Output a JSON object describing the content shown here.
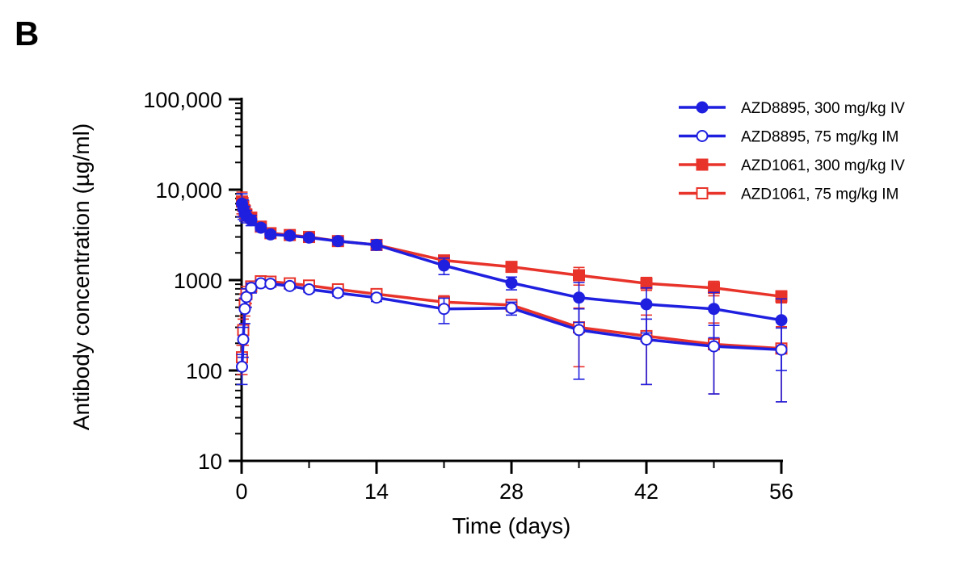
{
  "panel_label": "B",
  "chart_data": {
    "type": "line",
    "title": "",
    "xlabel": "Time (days)",
    "ylabel": "Antibody concentration (µg/ml)",
    "xlim": [
      0,
      56
    ],
    "ylim": [
      10,
      100000
    ],
    "yscale": "log",
    "x_ticks": [
      0,
      14,
      28,
      42,
      56
    ],
    "x_tick_labels": [
      "0",
      "14",
      "28",
      "42",
      "56"
    ],
    "y_ticks": [
      10,
      100,
      1000,
      10000,
      100000
    ],
    "y_tick_labels": [
      "10",
      "100",
      "1000",
      "10,000",
      "100,000"
    ],
    "grid": false,
    "legend_position": "top-right",
    "series": [
      {
        "name": "AZD8895, 300 mg/kg IV",
        "color": "#1f1fe0",
        "marker": "circle-filled",
        "x": [
          0.04,
          0.17,
          0.33,
          0.5,
          1,
          2,
          3,
          5,
          7,
          10,
          14,
          21,
          28,
          35,
          42,
          49,
          56
        ],
        "y": [
          7000,
          6200,
          5500,
          5100,
          4600,
          3800,
          3200,
          3100,
          2950,
          2700,
          2450,
          1450,
          930,
          640,
          540,
          480,
          360
        ],
        "err": [
          2000,
          1500,
          1000,
          800,
          600,
          300,
          250,
          200,
          200,
          250,
          300,
          300,
          150,
          300,
          280,
          250,
          260
        ]
      },
      {
        "name": "AZD8895, 75 mg/kg IM",
        "color": "#1f1fe0",
        "marker": "circle-open",
        "x": [
          0.04,
          0.17,
          0.33,
          0.5,
          1,
          2,
          3,
          5,
          7,
          10,
          14,
          21,
          28,
          35,
          42,
          49,
          56
        ],
        "y": [
          110,
          220,
          480,
          650,
          820,
          920,
          910,
          860,
          790,
          720,
          640,
          480,
          490,
          280,
          220,
          185,
          170
        ],
        "err": [
          40,
          80,
          150,
          150,
          100,
          80,
          70,
          60,
          60,
          60,
          60,
          150,
          80,
          200,
          150,
          130,
          125
        ]
      },
      {
        "name": "AZD1061, 300 mg/kg IV",
        "color": "#e8332a",
        "marker": "square-filled",
        "x": [
          0.04,
          0.17,
          0.33,
          0.5,
          1,
          2,
          3,
          5,
          7,
          10,
          14,
          21,
          28,
          35,
          42,
          49,
          56
        ],
        "y": [
          7400,
          6600,
          5800,
          5300,
          4900,
          3900,
          3300,
          3150,
          3000,
          2700,
          2450,
          1650,
          1400,
          1130,
          920,
          820,
          660
        ],
        "err": [
          2000,
          1500,
          1000,
          800,
          600,
          300,
          250,
          200,
          200,
          250,
          300,
          200,
          150,
          250,
          150,
          150,
          100
        ]
      },
      {
        "name": "AZD1061, 75 mg/kg IM",
        "color": "#e8332a",
        "marker": "square-open",
        "x": [
          0.04,
          0.17,
          0.33,
          0.5,
          1,
          2,
          3,
          5,
          7,
          10,
          14,
          21,
          28,
          35,
          42,
          49,
          56
        ],
        "y": [
          140,
          280,
          550,
          700,
          850,
          970,
          960,
          920,
          870,
          790,
          700,
          570,
          530,
          300,
          240,
          195,
          175
        ],
        "err": [
          50,
          90,
          150,
          150,
          100,
          80,
          70,
          60,
          60,
          60,
          60,
          100,
          80,
          190,
          170,
          140,
          130
        ]
      }
    ]
  }
}
